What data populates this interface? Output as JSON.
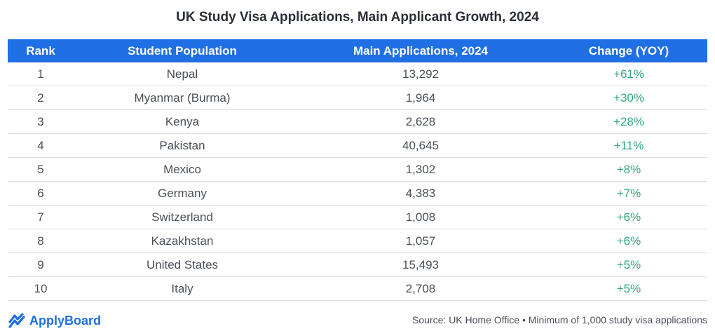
{
  "chart_data": {
    "type": "table",
    "title": "UK Study Visa Applications, Main Applicant Growth, 2024",
    "columns": [
      "Rank",
      "Student Population",
      "Main Applications, 2024",
      "Change (YOY)"
    ],
    "rows": [
      {
        "rank": "1",
        "population": "Nepal",
        "applications": "13,292",
        "change": "+61%"
      },
      {
        "rank": "2",
        "population": "Myanmar (Burma)",
        "applications": "1,964",
        "change": "+30%"
      },
      {
        "rank": "3",
        "population": "Kenya",
        "applications": "2,628",
        "change": "+28%"
      },
      {
        "rank": "4",
        "population": "Pakistan",
        "applications": "40,645",
        "change": "+11%"
      },
      {
        "rank": "5",
        "population": "Mexico",
        "applications": "1,302",
        "change": "+8%"
      },
      {
        "rank": "6",
        "population": "Germany",
        "applications": "4,383",
        "change": "+7%"
      },
      {
        "rank": "7",
        "population": "Switzerland",
        "applications": "1,008",
        "change": "+6%"
      },
      {
        "rank": "8",
        "population": "Kazakhstan",
        "applications": "1,057",
        "change": "+6%"
      },
      {
        "rank": "9",
        "population": "United States",
        "applications": "15,493",
        "change": "+5%"
      },
      {
        "rank": "10",
        "population": "Italy",
        "applications": "2,708",
        "change": "+5%"
      }
    ],
    "source": "Source: UK Home Office • Minimum of 1,000 study visa applications"
  },
  "brand": {
    "name": "ApplyBoard",
    "logo_icon": "applyboard-logo-icon",
    "color": "#1f6fe5"
  },
  "colors": {
    "header_bg": "#1f6fe5",
    "positive_change": "#2bab7a"
  }
}
